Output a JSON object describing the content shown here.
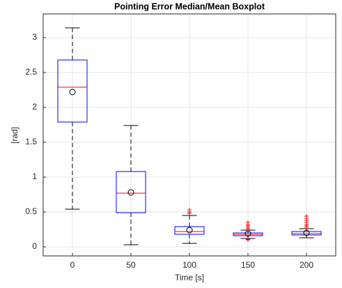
{
  "chart_data": {
    "type": "boxplot",
    "title": "Pointing Error Median/Mean Boxplot",
    "x_label": "Time [s]",
    "y_label": "[rad]",
    "categories": [
      "0",
      "50",
      "100",
      "150",
      "200"
    ],
    "boxes": [
      {
        "min": 0.54,
        "q1": 1.79,
        "median": 2.29,
        "q3": 2.68,
        "max": 3.14,
        "mean": 2.22,
        "outliers": []
      },
      {
        "min": 0.03,
        "q1": 0.49,
        "median": 0.77,
        "q3": 1.08,
        "max": 1.74,
        "mean": 0.78,
        "outliers": []
      },
      {
        "min": 0.05,
        "q1": 0.18,
        "median": 0.22,
        "q3": 0.29,
        "max": 0.45,
        "mean": 0.24,
        "outliers": [
          0.48,
          0.5,
          0.53
        ]
      },
      {
        "min": 0.12,
        "q1": 0.16,
        "median": 0.18,
        "q3": 0.2,
        "max": 0.24,
        "mean": 0.19,
        "outliers": [
          0.1,
          0.11,
          0.26,
          0.28,
          0.3,
          0.32,
          0.35
        ]
      },
      {
        "min": 0.13,
        "q1": 0.17,
        "median": 0.19,
        "q3": 0.22,
        "max": 0.26,
        "mean": 0.2,
        "outliers": [
          0.28,
          0.3,
          0.32,
          0.35,
          0.38,
          0.41,
          0.44
        ]
      }
    ],
    "ylim": [
      -0.13,
      3.34
    ],
    "yticks": [
      0,
      0.5,
      1,
      1.5,
      2,
      2.5,
      3
    ],
    "grid": true,
    "box_color": "#0000ff",
    "median_color": "#ff0000",
    "whisker_color": "#000000",
    "outlier_color": "#ff0000",
    "mean_color": "#000000"
  }
}
